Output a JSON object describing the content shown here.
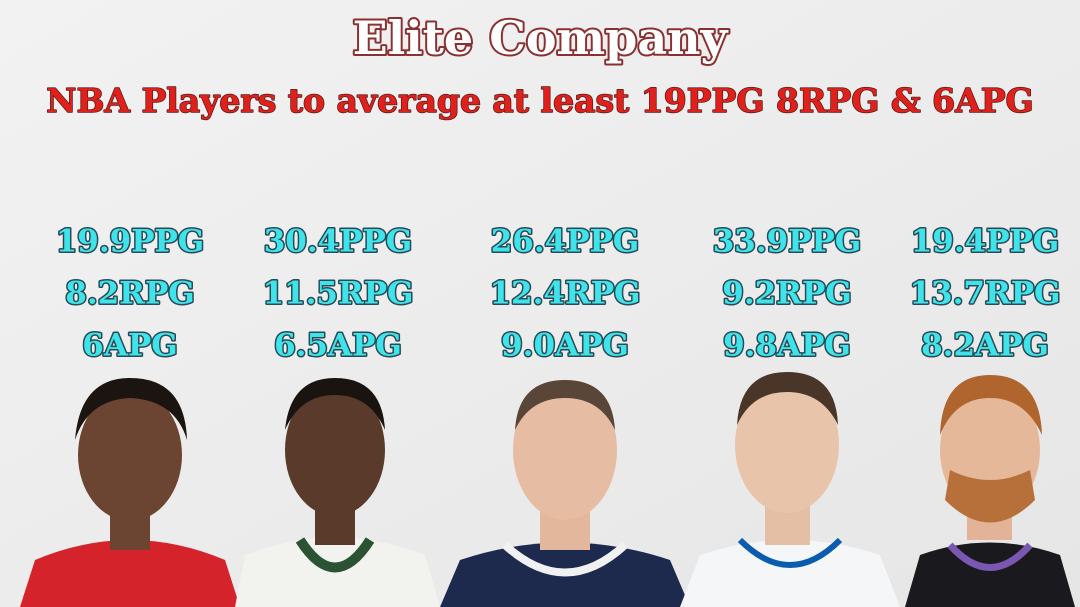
{
  "header": {
    "title": "Elite Company",
    "subtitle": "NBA Players to average at least 19PPG 8RPG & 6APG"
  },
  "players": [
    {
      "ppg": "19.9PPG",
      "rpg": "8.2RPG",
      "apg": "6APG"
    },
    {
      "ppg": "30.4PPG",
      "rpg": "11.5RPG",
      "apg": "6.5APG"
    },
    {
      "ppg": "26.4PPG",
      "rpg": "12.4RPG",
      "apg": "9.0APG"
    },
    {
      "ppg": "33.9PPG",
      "rpg": "9.2RPG",
      "apg": "9.8APG"
    },
    {
      "ppg": "19.4PPG",
      "rpg": "13.7RPG",
      "apg": "8.2APG"
    }
  ]
}
